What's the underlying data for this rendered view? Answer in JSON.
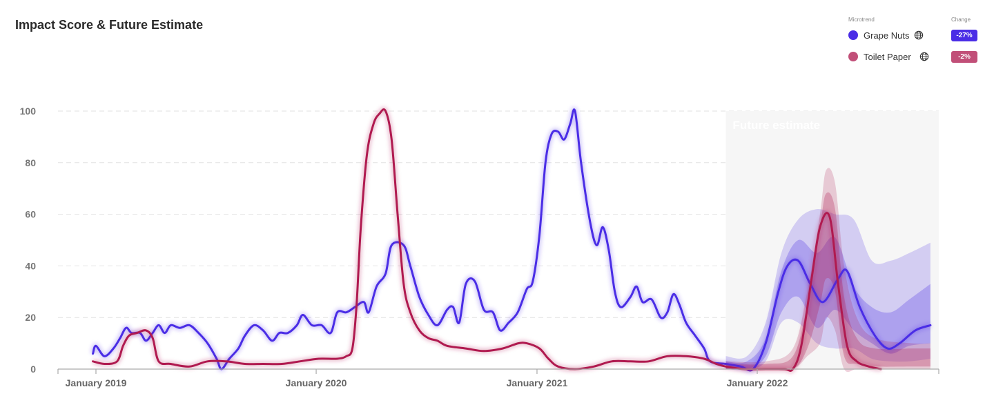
{
  "title": "Impact Score & Future Estimate",
  "legend": {
    "header_trend": "Microtrend",
    "header_change": "Change",
    "items": [
      {
        "name": "Grape Nuts",
        "change": "-27%",
        "color": "#4a2de6",
        "icon": "globe-icon"
      },
      {
        "name": "Toilet Paper",
        "change": "-2%",
        "color": "#c14f78",
        "icon": "globe-icon"
      }
    ]
  },
  "chart_data": {
    "type": "line",
    "title": "Impact Score & Future Estimate",
    "xlabel": "",
    "ylabel": "",
    "ylim": [
      0,
      100
    ],
    "xlim": [
      "2018-12-01",
      "2022-12-31"
    ],
    "grid": true,
    "yticks": [
      "0",
      "20",
      "40",
      "60",
      "80",
      "100"
    ],
    "xticks": [
      {
        "date": "2019-01-01",
        "label": "January 2019"
      },
      {
        "date": "2020-01-01",
        "label": "January 2020"
      },
      {
        "date": "2021-01-01",
        "label": "January 2021"
      },
      {
        "date": "2022-01-01",
        "label": "January 2022"
      }
    ],
    "future_region": {
      "start": "2021-11-10",
      "label": "Future estimate"
    },
    "series": [
      {
        "name": "Grape Nuts",
        "color": "#4a2de6",
        "points": [
          [
            "2018-12-27",
            6
          ],
          [
            "2019-01-01",
            9
          ],
          [
            "2019-01-15",
            5
          ],
          [
            "2019-01-30",
            8
          ],
          [
            "2019-02-10",
            12
          ],
          [
            "2019-02-20",
            16
          ],
          [
            "2019-03-01",
            14
          ],
          [
            "2019-03-15",
            14
          ],
          [
            "2019-03-25",
            11
          ],
          [
            "2019-04-05",
            14
          ],
          [
            "2019-04-15",
            17
          ],
          [
            "2019-04-25",
            14
          ],
          [
            "2019-05-05",
            17
          ],
          [
            "2019-05-20",
            16
          ],
          [
            "2019-06-05",
            17
          ],
          [
            "2019-06-20",
            14
          ],
          [
            "2019-07-05",
            10
          ],
          [
            "2019-07-20",
            4
          ],
          [
            "2019-07-28",
            0
          ],
          [
            "2019-08-10",
            4
          ],
          [
            "2019-08-25",
            8
          ],
          [
            "2019-09-05",
            13
          ],
          [
            "2019-09-20",
            17
          ],
          [
            "2019-10-05",
            15
          ],
          [
            "2019-10-20",
            11
          ],
          [
            "2019-11-01",
            14
          ],
          [
            "2019-11-15",
            14
          ],
          [
            "2019-11-30",
            17
          ],
          [
            "2019-12-10",
            21
          ],
          [
            "2019-12-25",
            17
          ],
          [
            "2020-01-10",
            17
          ],
          [
            "2020-01-25",
            14
          ],
          [
            "2020-02-05",
            22
          ],
          [
            "2020-02-20",
            22
          ],
          [
            "2020-03-05",
            24
          ],
          [
            "2020-03-20",
            26
          ],
          [
            "2020-03-28",
            22
          ],
          [
            "2020-04-10",
            32
          ],
          [
            "2020-04-25",
            37
          ],
          [
            "2020-05-05",
            48
          ],
          [
            "2020-05-25",
            48
          ],
          [
            "2020-06-05",
            40
          ],
          [
            "2020-06-20",
            28
          ],
          [
            "2020-07-05",
            21
          ],
          [
            "2020-07-20",
            17
          ],
          [
            "2020-08-05",
            23
          ],
          [
            "2020-08-15",
            24
          ],
          [
            "2020-08-25",
            18
          ],
          [
            "2020-09-05",
            33
          ],
          [
            "2020-09-20",
            34
          ],
          [
            "2020-10-05",
            23
          ],
          [
            "2020-10-20",
            22
          ],
          [
            "2020-11-01",
            15
          ],
          [
            "2020-11-15",
            18
          ],
          [
            "2020-11-30",
            22
          ],
          [
            "2020-12-15",
            31
          ],
          [
            "2020-12-25",
            34
          ],
          [
            "2021-01-05",
            52
          ],
          [
            "2021-01-15",
            80
          ],
          [
            "2021-01-25",
            91
          ],
          [
            "2021-02-05",
            92
          ],
          [
            "2021-02-15",
            89
          ],
          [
            "2021-02-25",
            95
          ],
          [
            "2021-03-05",
            100
          ],
          [
            "2021-03-15",
            80
          ],
          [
            "2021-03-30",
            57
          ],
          [
            "2021-04-10",
            48
          ],
          [
            "2021-04-20",
            55
          ],
          [
            "2021-04-30",
            46
          ],
          [
            "2021-05-10",
            30
          ],
          [
            "2021-05-20",
            24
          ],
          [
            "2021-06-05",
            28
          ],
          [
            "2021-06-15",
            32
          ],
          [
            "2021-06-25",
            26
          ],
          [
            "2021-07-10",
            27
          ],
          [
            "2021-07-25",
            20
          ],
          [
            "2021-08-05",
            22
          ],
          [
            "2021-08-15",
            29
          ],
          [
            "2021-08-25",
            25
          ],
          [
            "2021-09-05",
            18
          ],
          [
            "2021-09-20",
            13
          ],
          [
            "2021-10-05",
            8
          ],
          [
            "2021-10-15",
            3
          ],
          [
            "2021-11-10",
            2
          ],
          [
            "2021-12-05",
            1
          ],
          [
            "2021-12-25",
            0
          ],
          [
            "2022-01-15",
            10
          ],
          [
            "2022-02-05",
            30
          ],
          [
            "2022-02-20",
            40
          ],
          [
            "2022-03-10",
            42
          ],
          [
            "2022-03-30",
            33
          ],
          [
            "2022-04-20",
            26
          ],
          [
            "2022-05-15",
            35
          ],
          [
            "2022-05-30",
            38
          ],
          [
            "2022-06-20",
            24
          ],
          [
            "2022-07-15",
            13
          ],
          [
            "2022-08-05",
            8
          ],
          [
            "2022-08-25",
            10
          ],
          [
            "2022-09-20",
            15
          ],
          [
            "2022-10-15",
            17
          ]
        ]
      },
      {
        "name": "Toilet Paper",
        "color": "#b01a50",
        "points": [
          [
            "2018-12-27",
            3
          ],
          [
            "2019-01-15",
            2
          ],
          [
            "2019-02-05",
            3
          ],
          [
            "2019-02-15",
            9
          ],
          [
            "2019-02-25",
            13
          ],
          [
            "2019-03-10",
            14
          ],
          [
            "2019-03-25",
            15
          ],
          [
            "2019-04-05",
            12
          ],
          [
            "2019-04-15",
            3
          ],
          [
            "2019-05-05",
            2
          ],
          [
            "2019-06-05",
            1
          ],
          [
            "2019-07-05",
            3
          ],
          [
            "2019-08-05",
            3
          ],
          [
            "2019-09-05",
            2
          ],
          [
            "2019-10-05",
            2
          ],
          [
            "2019-11-05",
            2
          ],
          [
            "2019-12-05",
            3
          ],
          [
            "2020-01-05",
            4
          ],
          [
            "2020-02-05",
            4
          ],
          [
            "2020-02-20",
            5
          ],
          [
            "2020-03-01",
            8
          ],
          [
            "2020-03-08",
            25
          ],
          [
            "2020-03-15",
            55
          ],
          [
            "2020-03-25",
            83
          ],
          [
            "2020-04-05",
            95
          ],
          [
            "2020-04-15",
            99
          ],
          [
            "2020-04-25",
            100
          ],
          [
            "2020-05-05",
            89
          ],
          [
            "2020-05-15",
            60
          ],
          [
            "2020-05-25",
            33
          ],
          [
            "2020-06-05",
            22
          ],
          [
            "2020-06-20",
            15
          ],
          [
            "2020-07-05",
            12
          ],
          [
            "2020-07-20",
            11
          ],
          [
            "2020-08-05",
            9
          ],
          [
            "2020-09-05",
            8
          ],
          [
            "2020-10-05",
            7
          ],
          [
            "2020-11-05",
            8
          ],
          [
            "2020-12-01",
            10
          ],
          [
            "2020-12-15",
            10
          ],
          [
            "2021-01-05",
            8
          ],
          [
            "2021-01-20",
            4
          ],
          [
            "2021-02-05",
            1
          ],
          [
            "2021-03-05",
            0
          ],
          [
            "2021-04-05",
            1
          ],
          [
            "2021-05-05",
            3
          ],
          [
            "2021-06-05",
            3
          ],
          [
            "2021-07-05",
            3
          ],
          [
            "2021-08-05",
            5
          ],
          [
            "2021-09-05",
            5
          ],
          [
            "2021-10-05",
            4
          ],
          [
            "2021-10-25",
            2
          ],
          [
            "2021-11-10",
            1
          ],
          [
            "2021-12-10",
            0
          ],
          [
            "2022-01-15",
            0
          ],
          [
            "2022-02-15",
            0
          ],
          [
            "2022-03-01",
            0
          ],
          [
            "2022-03-15",
            9
          ],
          [
            "2022-04-01",
            35
          ],
          [
            "2022-04-15",
            55
          ],
          [
            "2022-05-01",
            59
          ],
          [
            "2022-05-15",
            33
          ],
          [
            "2022-05-30",
            9
          ],
          [
            "2022-06-15",
            3
          ],
          [
            "2022-07-05",
            1
          ],
          [
            "2022-07-25",
            0
          ]
        ]
      }
    ],
    "forecast_bands": [
      {
        "series": "Grape Nuts",
        "color": "#4a2de6",
        "level": "outer",
        "points": [
          [
            "2021-11-10",
            0,
            5
          ],
          [
            "2021-12-15",
            0,
            5
          ],
          [
            "2022-01-15",
            3,
            18
          ],
          [
            "2022-02-10",
            18,
            45
          ],
          [
            "2022-03-10",
            18,
            58
          ],
          [
            "2022-04-10",
            10,
            62
          ],
          [
            "2022-05-10",
            8,
            60
          ],
          [
            "2022-06-10",
            8,
            58
          ],
          [
            "2022-07-10",
            4,
            42
          ],
          [
            "2022-08-10",
            3,
            42
          ],
          [
            "2022-09-10",
            3,
            45
          ],
          [
            "2022-10-15",
            4,
            49
          ]
        ]
      },
      {
        "series": "Grape Nuts",
        "color": "#4a2de6",
        "level": "inner",
        "points": [
          [
            "2021-11-10",
            0,
            3
          ],
          [
            "2021-12-15",
            0,
            3
          ],
          [
            "2022-01-15",
            5,
            12
          ],
          [
            "2022-02-10",
            22,
            38
          ],
          [
            "2022-03-10",
            28,
            50
          ],
          [
            "2022-04-10",
            16,
            45
          ],
          [
            "2022-05-10",
            23,
            51
          ],
          [
            "2022-06-10",
            15,
            32
          ],
          [
            "2022-07-10",
            10,
            24
          ],
          [
            "2022-08-10",
            6,
            22
          ],
          [
            "2022-09-10",
            9,
            27
          ],
          [
            "2022-10-15",
            10,
            33
          ]
        ]
      },
      {
        "series": "Toilet Paper",
        "color": "#b01a50",
        "level": "outer",
        "points": [
          [
            "2021-11-10",
            0,
            3
          ],
          [
            "2022-01-15",
            0,
            3
          ],
          [
            "2022-03-01",
            0,
            8
          ],
          [
            "2022-03-25",
            5,
            30
          ],
          [
            "2022-04-15",
            10,
            60
          ],
          [
            "2022-04-25",
            20,
            77
          ],
          [
            "2022-05-10",
            15,
            72
          ],
          [
            "2022-05-25",
            0,
            40
          ],
          [
            "2022-06-15",
            0,
            20
          ],
          [
            "2022-07-15",
            0,
            12
          ],
          [
            "2022-09-15",
            0,
            10
          ],
          [
            "2022-10-15",
            0,
            10
          ]
        ]
      },
      {
        "series": "Toilet Paper",
        "color": "#b01a50",
        "level": "inner",
        "points": [
          [
            "2021-11-10",
            0,
            2
          ],
          [
            "2022-01-15",
            0,
            2
          ],
          [
            "2022-03-01",
            0,
            5
          ],
          [
            "2022-03-25",
            8,
            25
          ],
          [
            "2022-04-15",
            25,
            55
          ],
          [
            "2022-04-25",
            35,
            68
          ],
          [
            "2022-05-10",
            30,
            62
          ],
          [
            "2022-05-25",
            5,
            28
          ],
          [
            "2022-06-15",
            2,
            12
          ],
          [
            "2022-07-15",
            1,
            8
          ],
          [
            "2022-09-15",
            1,
            8
          ],
          [
            "2022-10-15",
            1,
            8
          ]
        ]
      }
    ]
  }
}
